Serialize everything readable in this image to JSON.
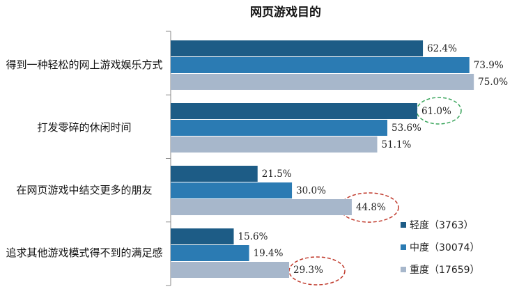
{
  "chart_data": {
    "type": "bar",
    "orientation": "horizontal",
    "title": "网页游戏目的",
    "categories": [
      "得到一种轻松的网上游戏娱乐方式",
      "打发零碎的休闲时间",
      "在网页游戏中结交更多的朋友",
      "追求其他游戏模式得不到的满足感"
    ],
    "series": [
      {
        "name": "轻度（3763）",
        "color": "#1d5c86",
        "values": [
          62.4,
          61.0,
          21.5,
          15.6
        ],
        "value_labels": [
          "62.4%",
          "61.0%",
          "21.5%",
          "15.6%"
        ]
      },
      {
        "name": "中度（30074）",
        "color": "#2b7bb3",
        "values": [
          73.9,
          53.6,
          30.0,
          19.4
        ],
        "value_labels": [
          "73.9%",
          "53.6%",
          "30.0%",
          "19.4%"
        ]
      },
      {
        "name": "重度（17659）",
        "color": "#a7b7cb",
        "values": [
          75.0,
          51.1,
          44.8,
          29.3
        ],
        "value_labels": [
          "75.0%",
          "51.1%",
          "44.8%",
          "29.3%"
        ]
      }
    ],
    "xlim": [
      0,
      86
    ],
    "legend": "lower right"
  }
}
